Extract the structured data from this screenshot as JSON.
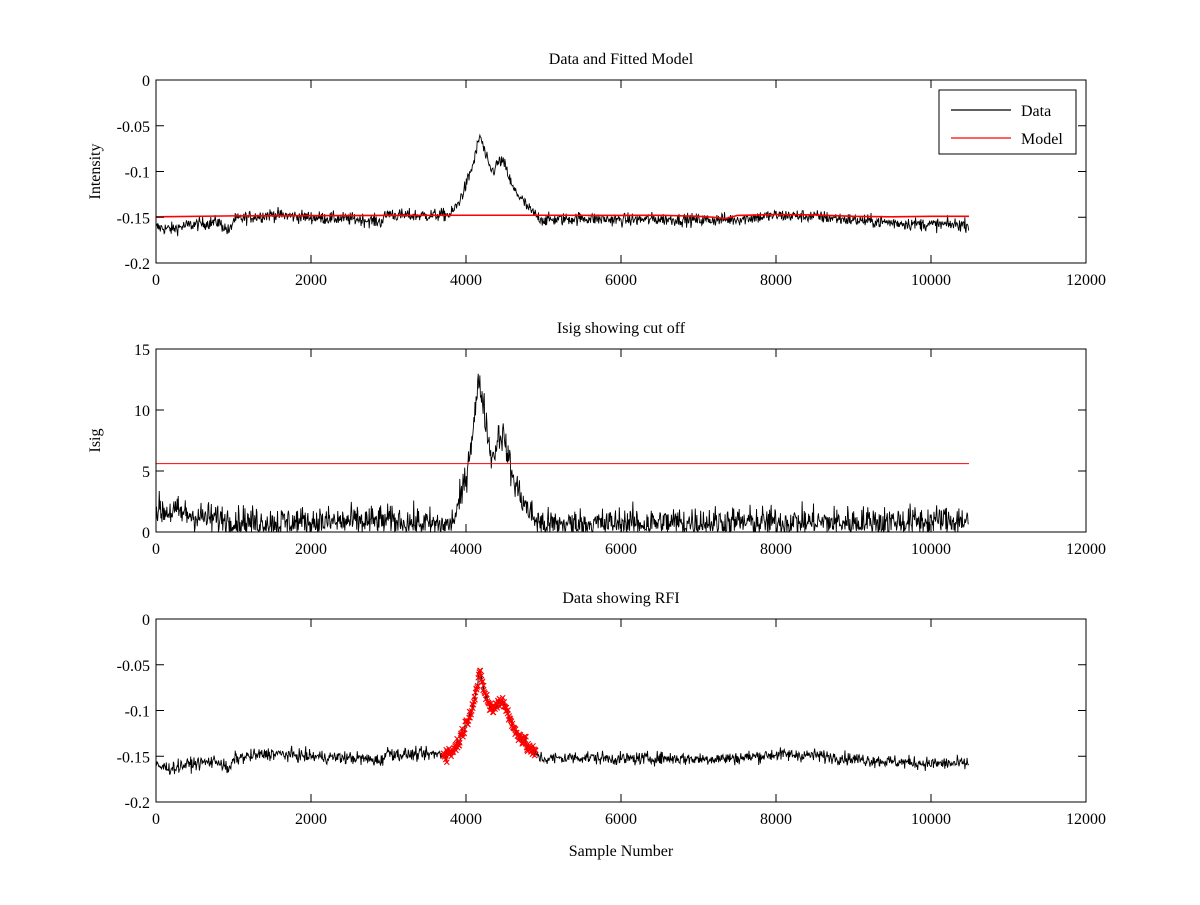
{
  "colors": {
    "data": "#000000",
    "model": "#ff0000",
    "rfi": "#ff0000",
    "axes": "#000000",
    "background": "#ffffff"
  },
  "chart_data": [
    {
      "type": "line",
      "title": "Data and Fitted Model",
      "xlabel": "",
      "ylabel": "Intensity",
      "xlim": [
        0,
        12000
      ],
      "ylim": [
        -0.2,
        0
      ],
      "xticks": [
        0,
        2000,
        4000,
        6000,
        8000,
        10000,
        12000
      ],
      "yticks": [
        -0.2,
        -0.15,
        -0.1,
        -0.05,
        0
      ],
      "xtick_labels": [
        "0",
        "2000",
        "4000",
        "6000",
        "8000",
        "10000",
        "12000"
      ],
      "ytick_labels": [
        "-0.2",
        "-0.15",
        "-0.1",
        "-0.05",
        "0"
      ],
      "grid": false,
      "legend": {
        "position": "top-right",
        "entries": [
          "Data",
          "Model"
        ]
      },
      "series": [
        {
          "name": "Data",
          "color": "#000000",
          "noise": 0.007,
          "x": [
            0,
            200,
            400,
            600,
            800,
            950,
            1000,
            1200,
            1500,
            1800,
            2200,
            2600,
            2900,
            3000,
            3100,
            3500,
            3800,
            3900,
            4000,
            4100,
            4180,
            4250,
            4300,
            4350,
            4400,
            4450,
            4500,
            4550,
            4600,
            4700,
            4800,
            4900,
            5000,
            5500,
            6000,
            6500,
            7000,
            7500,
            8000,
            8500,
            9000,
            9500,
            10000,
            10490
          ],
          "y": [
            -0.161,
            -0.163,
            -0.159,
            -0.157,
            -0.155,
            -0.166,
            -0.153,
            -0.15,
            -0.147,
            -0.149,
            -0.151,
            -0.152,
            -0.155,
            -0.145,
            -0.148,
            -0.148,
            -0.147,
            -0.135,
            -0.115,
            -0.09,
            -0.06,
            -0.082,
            -0.095,
            -0.1,
            -0.092,
            -0.088,
            -0.093,
            -0.105,
            -0.118,
            -0.128,
            -0.14,
            -0.148,
            -0.153,
            -0.151,
            -0.153,
            -0.152,
            -0.153,
            -0.152,
            -0.148,
            -0.149,
            -0.153,
            -0.156,
            -0.158,
            -0.158
          ]
        },
        {
          "name": "Model",
          "color": "#ff0000",
          "x": [
            0,
            1000,
            3000,
            4000,
            5000,
            6000,
            6500,
            7000,
            7200,
            7350,
            7500,
            8000,
            8500,
            9000,
            9500,
            10000,
            10490
          ],
          "y": [
            -0.1495,
            -0.1485,
            -0.148,
            -0.1478,
            -0.1478,
            -0.148,
            -0.1478,
            -0.149,
            -0.15,
            -0.1515,
            -0.148,
            -0.147,
            -0.1475,
            -0.149,
            -0.1495,
            -0.149,
            -0.149
          ]
        }
      ]
    },
    {
      "type": "line",
      "title": "Isig showing cut off",
      "xlabel": "",
      "ylabel": "Isig",
      "xlim": [
        0,
        12000
      ],
      "ylim": [
        0,
        15
      ],
      "xticks": [
        0,
        2000,
        4000,
        6000,
        8000,
        10000,
        12000
      ],
      "yticks": [
        0,
        5,
        10,
        15
      ],
      "xtick_labels": [
        "0",
        "2000",
        "4000",
        "6000",
        "8000",
        "10000",
        "12000"
      ],
      "ytick_labels": [
        "0",
        "5",
        "10",
        "15"
      ],
      "grid": false,
      "series": [
        {
          "name": "Isig",
          "color": "#000000",
          "noise": 1.3,
          "x": [
            0,
            300,
            600,
            900,
            1200,
            2000,
            3000,
            3800,
            3900,
            4000,
            4100,
            4170,
            4250,
            4300,
            4350,
            4400,
            4450,
            4500,
            4550,
            4600,
            4700,
            4800,
            4900,
            5000,
            6000,
            7000,
            8000,
            9000,
            10000,
            10490
          ],
          "y": [
            1.8,
            1.6,
            1.2,
            1.0,
            0.8,
            0.8,
            0.9,
            0.5,
            2.0,
            4.5,
            9.0,
            12.5,
            9.5,
            7.0,
            6.0,
            7.5,
            8.2,
            7.5,
            6.0,
            4.5,
            3.0,
            1.8,
            1.0,
            0.6,
            0.7,
            0.8,
            0.8,
            0.8,
            0.9,
            1.0
          ]
        },
        {
          "name": "cut off",
          "color": "#ff0000",
          "x": [
            0,
            10490
          ],
          "y": [
            5.6,
            5.6
          ]
        }
      ]
    },
    {
      "type": "line",
      "title": "Data showing RFI",
      "xlabel": "Sample Number",
      "ylabel": "",
      "xlim": [
        0,
        12000
      ],
      "ylim": [
        -0.2,
        0
      ],
      "xticks": [
        0,
        2000,
        4000,
        6000,
        8000,
        10000,
        12000
      ],
      "yticks": [
        -0.2,
        -0.15,
        -0.1,
        -0.05,
        0
      ],
      "xtick_labels": [
        "0",
        "2000",
        "4000",
        "6000",
        "8000",
        "10000",
        "12000"
      ],
      "ytick_labels": [
        "-0.2",
        "-0.15",
        "-0.1",
        "-0.05",
        "0"
      ],
      "grid": false,
      "rfi_range": [
        3700,
        4900
      ],
      "series": [
        {
          "name": "Data",
          "color": "#000000",
          "noise": 0.007,
          "x": [
            0,
            200,
            400,
            600,
            800,
            950,
            1000,
            1200,
            1500,
            1800,
            2200,
            2600,
            2900,
            3000,
            3100,
            3500,
            3800,
            3900,
            4000,
            4100,
            4180,
            4250,
            4300,
            4350,
            4400,
            4450,
            4500,
            4550,
            4600,
            4700,
            4800,
            4900,
            5000,
            5500,
            6000,
            6500,
            7000,
            7500,
            8000,
            8500,
            9000,
            9500,
            10000,
            10490
          ],
          "y": [
            -0.161,
            -0.163,
            -0.159,
            -0.157,
            -0.155,
            -0.166,
            -0.153,
            -0.15,
            -0.147,
            -0.149,
            -0.151,
            -0.152,
            -0.155,
            -0.145,
            -0.148,
            -0.148,
            -0.147,
            -0.135,
            -0.115,
            -0.09,
            -0.06,
            -0.082,
            -0.095,
            -0.1,
            -0.092,
            -0.088,
            -0.093,
            -0.105,
            -0.118,
            -0.128,
            -0.14,
            -0.148,
            -0.153,
            -0.151,
            -0.153,
            -0.152,
            -0.153,
            -0.152,
            -0.148,
            -0.149,
            -0.153,
            -0.156,
            -0.158,
            -0.158
          ]
        }
      ]
    }
  ]
}
